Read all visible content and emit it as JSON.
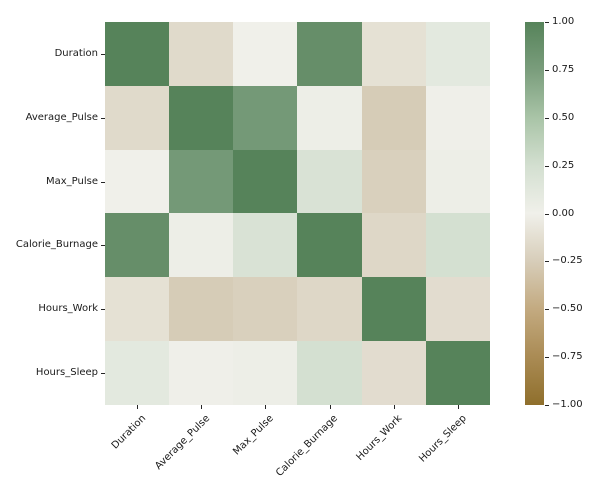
{
  "figure": {
    "background": "#ffffff",
    "text_color": "#1a1a1a"
  },
  "chart_data": {
    "type": "heatmap",
    "title": "",
    "xlabel": "",
    "ylabel": "",
    "categories": [
      "Duration",
      "Average_Pulse",
      "Max_Pulse",
      "Calorie_Burnage",
      "Hours_Work",
      "Hours_Sleep"
    ],
    "matrix": [
      [
        1.0,
        -0.16,
        0.0,
        0.89,
        -0.11,
        0.11
      ],
      [
        -0.16,
        1.0,
        0.79,
        0.03,
        -0.26,
        0.01
      ],
      [
        0.0,
        0.79,
        1.0,
        0.2,
        -0.23,
        0.03
      ],
      [
        0.89,
        0.03,
        0.2,
        1.0,
        -0.18,
        0.24
      ],
      [
        -0.11,
        -0.26,
        -0.23,
        -0.18,
        1.0,
        -0.14
      ],
      [
        0.11,
        0.01,
        0.03,
        0.24,
        -0.14,
        1.0
      ]
    ],
    "vmin": -1.0,
    "vmax": 1.0,
    "x_tick_rotation": 45,
    "grid": false,
    "legend_position": "right",
    "colormap_stops": [
      {
        "value": -1.0,
        "color": "#8f6f2c"
      },
      {
        "value": -0.75,
        "color": "#aa8b54"
      },
      {
        "value": -0.5,
        "color": "#c3aa80"
      },
      {
        "value": -0.25,
        "color": "#d7cdb9"
      },
      {
        "value": 0.0,
        "color": "#f0f0ea"
      },
      {
        "value": 0.25,
        "color": "#d3dfd0"
      },
      {
        "value": 0.5,
        "color": "#a9c4a7"
      },
      {
        "value": 0.75,
        "color": "#7a9d7c"
      },
      {
        "value": 1.0,
        "color": "#56835a"
      }
    ],
    "colorbar_ticks": [
      "1.00",
      "0.75",
      "0.50",
      "0.25",
      "0.00",
      "−0.25",
      "−0.50",
      "−0.75",
      "−1.00"
    ],
    "colorbar_tick_values": [
      1.0,
      0.75,
      0.5,
      0.25,
      0.0,
      -0.25,
      -0.5,
      -0.75,
      -1.0
    ]
  }
}
